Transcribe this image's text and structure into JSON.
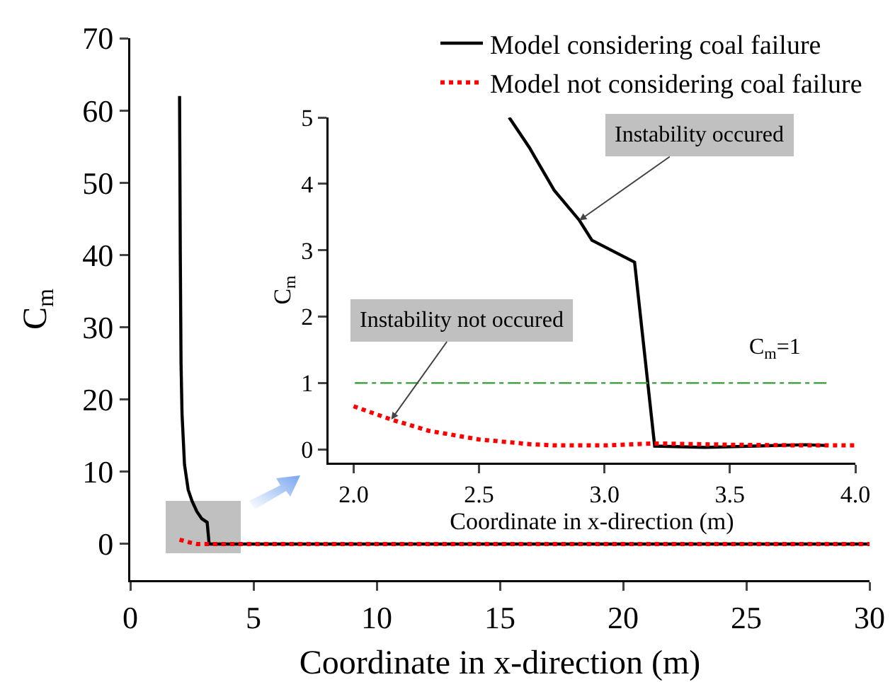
{
  "chart_data": [
    {
      "type": "line",
      "xlabel": "Coordinate in x-direction (m)",
      "ylabel": "C$_{m}$",
      "xlim": [
        0,
        30
      ],
      "ylim": [
        -5,
        70
      ],
      "xticks": [
        0,
        5,
        10,
        15,
        20,
        25,
        30
      ],
      "yticks": [
        0,
        10,
        20,
        30,
        40,
        50,
        60,
        70
      ],
      "grid": false,
      "legend": "top right",
      "marker": "none",
      "series": [
        {
          "name": "Model considering coal failure",
          "color": "#000000",
          "line_style": "solid",
          "x": [
            2.0,
            2.03,
            2.06,
            2.1,
            2.2,
            2.35,
            2.5,
            2.7,
            2.9,
            3.12,
            3.2,
            30
          ],
          "values": [
            62,
            40,
            25,
            18,
            11,
            7.5,
            6,
            4.5,
            3.5,
            3,
            0,
            0
          ]
        },
        {
          "name": "Model not considering coal failure",
          "color": "#ff0000",
          "line_style": "dotted",
          "x": [
            2.0,
            2.3,
            2.7,
            30
          ],
          "values": [
            0.6,
            0.3,
            0,
            0
          ]
        }
      ]
    },
    {
      "type": "line",
      "xlabel": "Coordinate in x-direction (m)",
      "ylabel": "C$_{m}$",
      "xlim": [
        1.9,
        4.0
      ],
      "ylim": [
        -0.2,
        5
      ],
      "xticks": [
        {
          "value": 2,
          "label": "2.0"
        },
        2.5,
        {
          "value": 3,
          "label": "3.0"
        },
        3.5,
        {
          "value": 4,
          "label": "4.0"
        }
      ],
      "yticks": [
        0,
        1,
        2,
        3,
        4,
        5
      ],
      "grid": false,
      "legend": false,
      "marker": "none",
      "series": [
        {
          "color": "#000000",
          "line_style": "solid",
          "x": [
            2.62,
            2.7,
            2.8,
            2.9,
            2.95,
            3.12,
            3.2,
            3.4,
            3.6,
            3.8,
            3.88
          ],
          "values": [
            5,
            4.55,
            3.9,
            3.45,
            3.15,
            2.82,
            0.05,
            0.03,
            0.05,
            0.07,
            0.06
          ]
        },
        {
          "color": "#ff0000",
          "line_style": "dotted",
          "x": [
            2.0,
            2.15,
            2.3,
            2.5,
            2.7,
            2.8,
            3.0,
            3.2,
            3.5,
            3.8,
            4.0
          ],
          "values": [
            0.65,
            0.45,
            0.28,
            0.15,
            0.08,
            0.06,
            0.06,
            0.09,
            0.07,
            0.06,
            0.06
          ]
        }
      ],
      "ref_lines": [
        {
          "axis": "y",
          "value": 1,
          "label": "C$_{m}$=1",
          "color": "#339933",
          "line_style": "dashdot"
        }
      ],
      "annotations": [
        {
          "text": "Instability occured",
          "x": 2.9,
          "y": 3.45
        },
        {
          "text": "Instability not occured",
          "x": 2.15,
          "y": 0.45
        }
      ]
    }
  ]
}
